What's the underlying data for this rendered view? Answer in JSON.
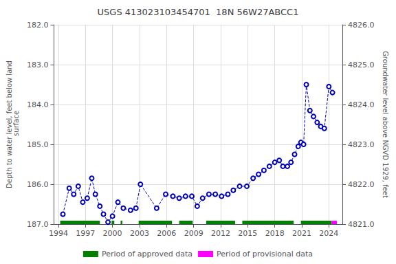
{
  "chart_data": {
    "type": "line",
    "title": "USGS 413023103454701  18N 56W27ABCC1",
    "ylabel": "Depth to water level, feet below land\n surface",
    "y2label": "Groundwater level above NGVD 1929, feet",
    "x": [
      1994.5,
      1995.2,
      1995.7,
      1996.2,
      1996.7,
      1997.2,
      1997.7,
      1998.1,
      1998.6,
      1999.0,
      1999.5,
      2000.0,
      2000.6,
      2001.2,
      2002.0,
      2002.6,
      2003.1,
      2004.9,
      2005.9,
      2006.7,
      2007.4,
      2008.1,
      2008.8,
      2009.4,
      2010.0,
      2010.7,
      2011.4,
      2012.1,
      2012.8,
      2013.4,
      2014.1,
      2014.9,
      2015.6,
      2016.2,
      2016.8,
      2017.4,
      2018.0,
      2018.5,
      2018.9,
      2019.4,
      2019.8,
      2020.2,
      2020.6,
      2020.9,
      2021.2,
      2021.5,
      2021.9,
      2022.3,
      2022.7,
      2023.1,
      2023.5,
      2024.0,
      2024.4
    ],
    "values": [
      186.75,
      186.1,
      186.25,
      186.05,
      186.45,
      186.35,
      185.85,
      186.25,
      186.55,
      186.75,
      186.95,
      186.8,
      186.45,
      186.6,
      186.65,
      186.6,
      186.0,
      186.6,
      186.25,
      186.3,
      186.35,
      186.3,
      186.3,
      186.55,
      186.35,
      186.25,
      186.25,
      186.3,
      186.25,
      186.15,
      186.05,
      186.05,
      185.85,
      185.75,
      185.65,
      185.55,
      185.45,
      185.4,
      185.55,
      185.55,
      185.45,
      185.25,
      185.05,
      184.95,
      185.0,
      183.5,
      184.15,
      184.3,
      184.45,
      184.55,
      184.6,
      183.55,
      183.7
    ],
    "color": "#0000bb",
    "marker": "circle",
    "line_style": "dashed",
    "xlim": [
      1993.5,
      2025.5
    ],
    "xticks": [
      1994,
      1997,
      2000,
      2003,
      2006,
      2009,
      2012,
      2015,
      2018,
      2021,
      2024
    ],
    "ylim": [
      187.0,
      182.0
    ],
    "yticks": [
      {
        "value": 182.0,
        "label": "182.0"
      },
      {
        "value": 183.0,
        "label": "183.0"
      },
      {
        "value": 184.0,
        "label": "184.0"
      },
      {
        "value": 185.0,
        "label": "185.0"
      },
      {
        "value": 186.0,
        "label": "186.0"
      },
      {
        "value": 187.0,
        "label": "187.0"
      }
    ],
    "y2lim": [
      4821.0,
      4826.0
    ],
    "y2ticks": [
      {
        "value": 4826.0,
        "label": "4826.0"
      },
      {
        "value": 4825.0,
        "label": "4825.0"
      },
      {
        "value": 4824.0,
        "label": "4824.0"
      },
      {
        "value": 4823.0,
        "label": "4823.0"
      },
      {
        "value": 4822.0,
        "label": "4822.0"
      },
      {
        "value": 4821.0,
        "label": "4821.0"
      }
    ],
    "grid": true,
    "legend": "bottom",
    "periods": [
      {
        "name": "Period of approved data",
        "color": "#008000",
        "ranges": [
          [
            1994.2,
            1998.6
          ],
          [
            1999.9,
            2000.2
          ],
          [
            2000.9,
            2001.1
          ],
          [
            2002.9,
            2006.6
          ],
          [
            2007.4,
            2008.9
          ],
          [
            2010.4,
            2013.6
          ],
          [
            2014.4,
            2020.1
          ],
          [
            2020.9,
            2024.3
          ]
        ]
      },
      {
        "name": "Period of provisional data",
        "color": "#ff00ff",
        "ranges": [
          [
            2024.3,
            2024.9
          ]
        ]
      }
    ]
  }
}
